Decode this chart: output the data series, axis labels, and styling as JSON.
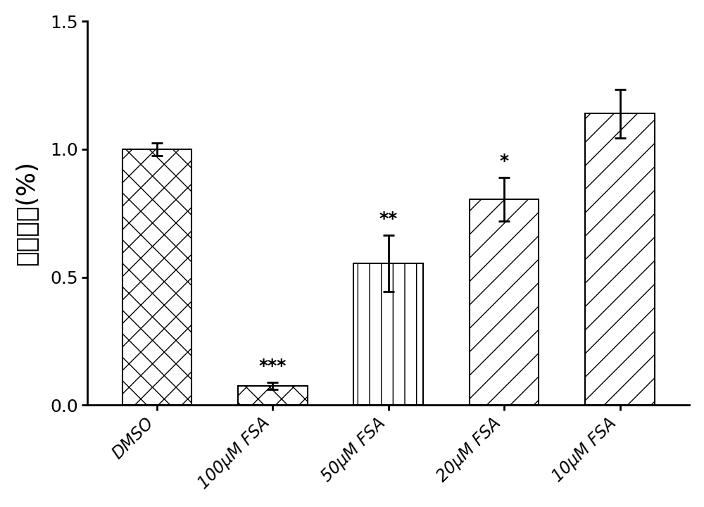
{
  "categories": [
    "DMSO",
    "100μM FSA",
    "50μM FSA",
    "20μM FSA",
    "10μM FSA"
  ],
  "values": [
    1.0,
    0.075,
    0.555,
    0.805,
    1.14
  ],
  "errors": [
    0.025,
    0.015,
    0.11,
    0.085,
    0.095
  ],
  "significance": [
    "",
    "***",
    "**",
    "*",
    ""
  ],
  "ylabel": "细胞活力(%)",
  "ylim": [
    0,
    1.5
  ],
  "yticks": [
    0.0,
    0.5,
    1.0,
    1.5
  ],
  "ytick_labels": [
    "0.0",
    "0.5",
    "1.0",
    "1.5"
  ],
  "bar_edge_color": "#000000",
  "background_color": "#ffffff",
  "fig_width": 10.0,
  "fig_height": 7.2,
  "bar_width": 0.6
}
